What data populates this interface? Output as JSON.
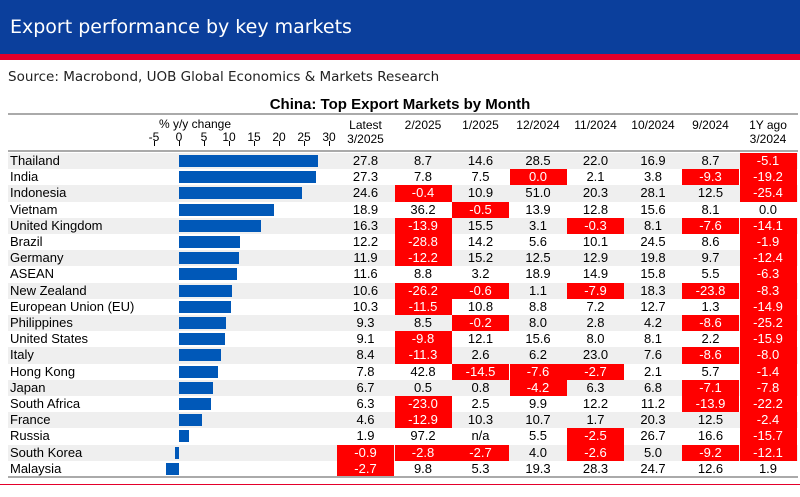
{
  "header": {
    "title": "Export performance by key markets"
  },
  "source": "Source: Macrobond, UOB Global Economics & Markets Research",
  "colors": {
    "header": "#0b3f9c",
    "accent": "#e4002b",
    "bar": "#0058b8",
    "negative_highlight": "#ff0000"
  },
  "chart_data": {
    "type": "table",
    "title": "China: Top Export Markets by Month",
    "bar_axis": {
      "label": "% y/y change",
      "ticks": [
        "-5",
        "0",
        "5",
        "10",
        "15",
        "20",
        "25",
        "30"
      ],
      "range": [
        -5,
        30
      ]
    },
    "columns": [
      "Latest 3/2025",
      "2/2025",
      "1/2025",
      "12/2024",
      "11/2024",
      "10/2024",
      "9/2024",
      "1Y ago 3/2024"
    ],
    "column_lines": [
      [
        "Latest",
        "3/2025"
      ],
      [
        "2/2025"
      ],
      [
        "1/2025"
      ],
      [
        "12/2024"
      ],
      [
        "11/2024"
      ],
      [
        "10/2024"
      ],
      [
        "9/2024"
      ],
      [
        "1Y ago",
        "3/2024"
      ]
    ],
    "rows": [
      {
        "name": "Thailand",
        "latest": 27.8,
        "cells": [
          "27.8",
          "8.7",
          "14.6",
          "28.5",
          "22.0",
          "16.9",
          "8.7",
          "-5.1"
        ],
        "red": [
          7
        ]
      },
      {
        "name": "India",
        "latest": 27.3,
        "cells": [
          "27.3",
          "7.8",
          "7.5",
          "0.0",
          "2.1",
          "3.8",
          "-9.3",
          "-19.2"
        ],
        "red": [
          3,
          6,
          7
        ]
      },
      {
        "name": "Indonesia",
        "latest": 24.6,
        "cells": [
          "24.6",
          "-0.4",
          "10.9",
          "51.0",
          "20.3",
          "28.1",
          "12.5",
          "-25.4"
        ],
        "red": [
          1,
          7
        ]
      },
      {
        "name": "Vietnam",
        "latest": 18.9,
        "cells": [
          "18.9",
          "36.2",
          "-0.5",
          "13.9",
          "12.8",
          "15.6",
          "8.1",
          "0.0"
        ],
        "red": [
          2
        ]
      },
      {
        "name": "United Kingdom",
        "latest": 16.3,
        "cells": [
          "16.3",
          "-13.9",
          "15.5",
          "3.1",
          "-0.3",
          "8.1",
          "-7.6",
          "-14.1"
        ],
        "red": [
          1,
          4,
          6,
          7
        ]
      },
      {
        "name": "Brazil",
        "latest": 12.2,
        "cells": [
          "12.2",
          "-28.8",
          "14.2",
          "5.6",
          "10.1",
          "24.5",
          "8.6",
          "-1.9"
        ],
        "red": [
          1,
          7
        ]
      },
      {
        "name": "Germany",
        "latest": 11.9,
        "cells": [
          "11.9",
          "-12.2",
          "15.2",
          "12.5",
          "12.9",
          "19.8",
          "9.7",
          "-12.4"
        ],
        "red": [
          1,
          7
        ]
      },
      {
        "name": "ASEAN",
        "latest": 11.6,
        "cells": [
          "11.6",
          "8.8",
          "3.2",
          "18.9",
          "14.9",
          "15.8",
          "5.5",
          "-6.3"
        ],
        "red": [
          7
        ]
      },
      {
        "name": "New Zealand",
        "latest": 10.6,
        "cells": [
          "10.6",
          "-26.2",
          "-0.6",
          "1.1",
          "-7.9",
          "18.3",
          "-23.8",
          "-8.3"
        ],
        "red": [
          1,
          2,
          4,
          6,
          7
        ]
      },
      {
        "name": "European Union (EU)",
        "latest": 10.3,
        "cells": [
          "10.3",
          "-11.5",
          "10.8",
          "8.8",
          "7.2",
          "12.7",
          "1.3",
          "-14.9"
        ],
        "red": [
          1,
          7
        ]
      },
      {
        "name": "Philippines",
        "latest": 9.3,
        "cells": [
          "9.3",
          "8.5",
          "-0.2",
          "8.0",
          "2.8",
          "4.2",
          "-8.6",
          "-25.2"
        ],
        "red": [
          2,
          6,
          7
        ]
      },
      {
        "name": "United States",
        "latest": 9.1,
        "cells": [
          "9.1",
          "-9.8",
          "12.1",
          "15.6",
          "8.0",
          "8.1",
          "2.2",
          "-15.9"
        ],
        "red": [
          1,
          7
        ]
      },
      {
        "name": "Italy",
        "latest": 8.4,
        "cells": [
          "8.4",
          "-11.3",
          "2.6",
          "6.2",
          "23.0",
          "7.6",
          "-8.6",
          "-8.0"
        ],
        "red": [
          1,
          6,
          7
        ]
      },
      {
        "name": "Hong Kong",
        "latest": 7.8,
        "cells": [
          "7.8",
          "42.8",
          "-14.5",
          "-7.6",
          "-2.7",
          "2.1",
          "5.7",
          "-1.4"
        ],
        "red": [
          2,
          3,
          4,
          7
        ]
      },
      {
        "name": "Japan",
        "latest": 6.7,
        "cells": [
          "6.7",
          "0.5",
          "0.8",
          "-4.2",
          "6.3",
          "6.8",
          "-7.1",
          "-7.8"
        ],
        "red": [
          3,
          6,
          7
        ]
      },
      {
        "name": "South Africa",
        "latest": 6.3,
        "cells": [
          "6.3",
          "-23.0",
          "2.5",
          "9.9",
          "12.2",
          "11.2",
          "-13.9",
          "-22.2"
        ],
        "red": [
          1,
          6,
          7
        ]
      },
      {
        "name": "France",
        "latest": 4.6,
        "cells": [
          "4.6",
          "-12.9",
          "10.3",
          "10.7",
          "1.7",
          "20.3",
          "12.5",
          "-2.4"
        ],
        "red": [
          1,
          7
        ]
      },
      {
        "name": "Russia",
        "latest": 1.9,
        "cells": [
          "1.9",
          "97.2",
          "n/a",
          "5.5",
          "-2.5",
          "26.7",
          "16.6",
          "-15.7"
        ],
        "red": [
          4,
          7
        ]
      },
      {
        "name": "South Korea",
        "latest": -0.9,
        "cells": [
          "-0.9",
          "-2.8",
          "-2.7",
          "4.0",
          "-2.6",
          "5.0",
          "-9.2",
          "-12.1"
        ],
        "red": [
          0,
          1,
          2,
          4,
          6,
          7
        ]
      },
      {
        "name": "Malaysia",
        "latest": -2.7,
        "cells": [
          "-2.7",
          "9.8",
          "5.3",
          "19.3",
          "28.3",
          "24.7",
          "12.6",
          "1.9"
        ],
        "red": [
          0
        ]
      }
    ]
  }
}
